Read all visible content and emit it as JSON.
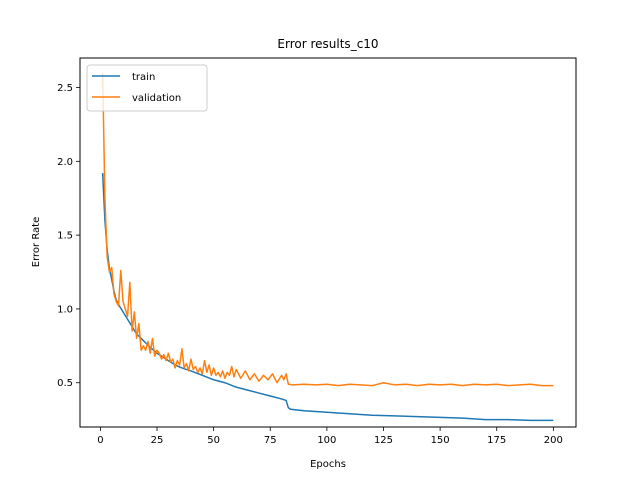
{
  "chart_data": {
    "type": "line",
    "title": "Error results_c10",
    "xlabel": "Epochs",
    "ylabel": "Error Rate",
    "xlim": [
      -9,
      210
    ],
    "ylim": [
      0.2,
      2.7
    ],
    "xticks": [
      0,
      25,
      50,
      75,
      100,
      125,
      150,
      175,
      200
    ],
    "yticks": [
      0.5,
      1.0,
      1.5,
      2.0,
      2.5
    ],
    "ytick_labels": [
      "0.5",
      "1.0",
      "1.5",
      "2.0",
      "2.5"
    ],
    "grid": false,
    "legend_position": "top-left",
    "series": [
      {
        "name": "train",
        "color": "#1f77b4",
        "points": [
          [
            1,
            1.92
          ],
          [
            2,
            1.6
          ],
          [
            3,
            1.4
          ],
          [
            4,
            1.27
          ],
          [
            5,
            1.2
          ],
          [
            6,
            1.12
          ],
          [
            7,
            1.06
          ],
          [
            8,
            1.03
          ],
          [
            10,
            0.98
          ],
          [
            12,
            0.93
          ],
          [
            14,
            0.88
          ],
          [
            16,
            0.83
          ],
          [
            18,
            0.8
          ],
          [
            20,
            0.77
          ],
          [
            22,
            0.74
          ],
          [
            25,
            0.7
          ],
          [
            28,
            0.67
          ],
          [
            30,
            0.65
          ],
          [
            33,
            0.62
          ],
          [
            36,
            0.6
          ],
          [
            40,
            0.58
          ],
          [
            45,
            0.55
          ],
          [
            50,
            0.52
          ],
          [
            55,
            0.5
          ],
          [
            60,
            0.47
          ],
          [
            65,
            0.45
          ],
          [
            70,
            0.43
          ],
          [
            75,
            0.41
          ],
          [
            80,
            0.39
          ],
          [
            82,
            0.38
          ],
          [
            83,
            0.33
          ],
          [
            84,
            0.32
          ],
          [
            90,
            0.31
          ],
          [
            100,
            0.3
          ],
          [
            110,
            0.29
          ],
          [
            120,
            0.28
          ],
          [
            130,
            0.275
          ],
          [
            140,
            0.27
          ],
          [
            150,
            0.265
          ],
          [
            160,
            0.26
          ],
          [
            170,
            0.25
          ],
          [
            180,
            0.25
          ],
          [
            190,
            0.245
          ],
          [
            200,
            0.245
          ]
        ]
      },
      {
        "name": "validation",
        "color": "#ff7f0e",
        "points": [
          [
            1,
            2.6
          ],
          [
            2,
            1.75
          ],
          [
            3,
            1.35
          ],
          [
            4,
            1.25
          ],
          [
            5,
            1.28
          ],
          [
            6,
            1.1
          ],
          [
            7,
            1.05
          ],
          [
            8,
            1.02
          ],
          [
            9,
            1.26
          ],
          [
            10,
            1.05
          ],
          [
            11,
            1.0
          ],
          [
            12,
            0.95
          ],
          [
            13,
            1.18
          ],
          [
            14,
            0.85
          ],
          [
            15,
            0.98
          ],
          [
            16,
            0.8
          ],
          [
            17,
            0.9
          ],
          [
            18,
            0.72
          ],
          [
            19,
            0.75
          ],
          [
            20,
            0.72
          ],
          [
            21,
            0.78
          ],
          [
            22,
            0.7
          ],
          [
            23,
            0.8
          ],
          [
            24,
            0.68
          ],
          [
            25,
            0.72
          ],
          [
            26,
            0.7
          ],
          [
            27,
            0.66
          ],
          [
            28,
            0.69
          ],
          [
            29,
            0.65
          ],
          [
            30,
            0.7
          ],
          [
            31,
            0.64
          ],
          [
            32,
            0.66
          ],
          [
            33,
            0.6
          ],
          [
            34,
            0.65
          ],
          [
            35,
            0.62
          ],
          [
            36,
            0.73
          ],
          [
            37,
            0.6
          ],
          [
            38,
            0.63
          ],
          [
            39,
            0.58
          ],
          [
            40,
            0.66
          ],
          [
            41,
            0.59
          ],
          [
            42,
            0.61
          ],
          [
            43,
            0.57
          ],
          [
            44,
            0.6
          ],
          [
            45,
            0.56
          ],
          [
            46,
            0.65
          ],
          [
            47,
            0.57
          ],
          [
            48,
            0.62
          ],
          [
            49,
            0.55
          ],
          [
            50,
            0.6
          ],
          [
            51,
            0.55
          ],
          [
            52,
            0.57
          ],
          [
            53,
            0.54
          ],
          [
            54,
            0.58
          ],
          [
            55,
            0.53
          ],
          [
            56,
            0.57
          ],
          [
            57,
            0.55
          ],
          [
            58,
            0.61
          ],
          [
            59,
            0.54
          ],
          [
            60,
            0.59
          ],
          [
            62,
            0.53
          ],
          [
            64,
            0.58
          ],
          [
            66,
            0.52
          ],
          [
            68,
            0.56
          ],
          [
            70,
            0.51
          ],
          [
            72,
            0.55
          ],
          [
            74,
            0.52
          ],
          [
            76,
            0.56
          ],
          [
            78,
            0.5
          ],
          [
            80,
            0.55
          ],
          [
            81,
            0.52
          ],
          [
            82,
            0.56
          ],
          [
            83,
            0.49
          ],
          [
            85,
            0.485
          ],
          [
            90,
            0.49
          ],
          [
            95,
            0.485
          ],
          [
            100,
            0.49
          ],
          [
            105,
            0.48
          ],
          [
            110,
            0.49
          ],
          [
            115,
            0.485
          ],
          [
            120,
            0.48
          ],
          [
            125,
            0.5
          ],
          [
            130,
            0.485
          ],
          [
            135,
            0.49
          ],
          [
            140,
            0.48
          ],
          [
            145,
            0.49
          ],
          [
            150,
            0.485
          ],
          [
            155,
            0.49
          ],
          [
            160,
            0.48
          ],
          [
            165,
            0.49
          ],
          [
            170,
            0.485
          ],
          [
            175,
            0.49
          ],
          [
            180,
            0.48
          ],
          [
            185,
            0.485
          ],
          [
            190,
            0.49
          ],
          [
            195,
            0.48
          ],
          [
            200,
            0.48
          ]
        ]
      }
    ]
  }
}
